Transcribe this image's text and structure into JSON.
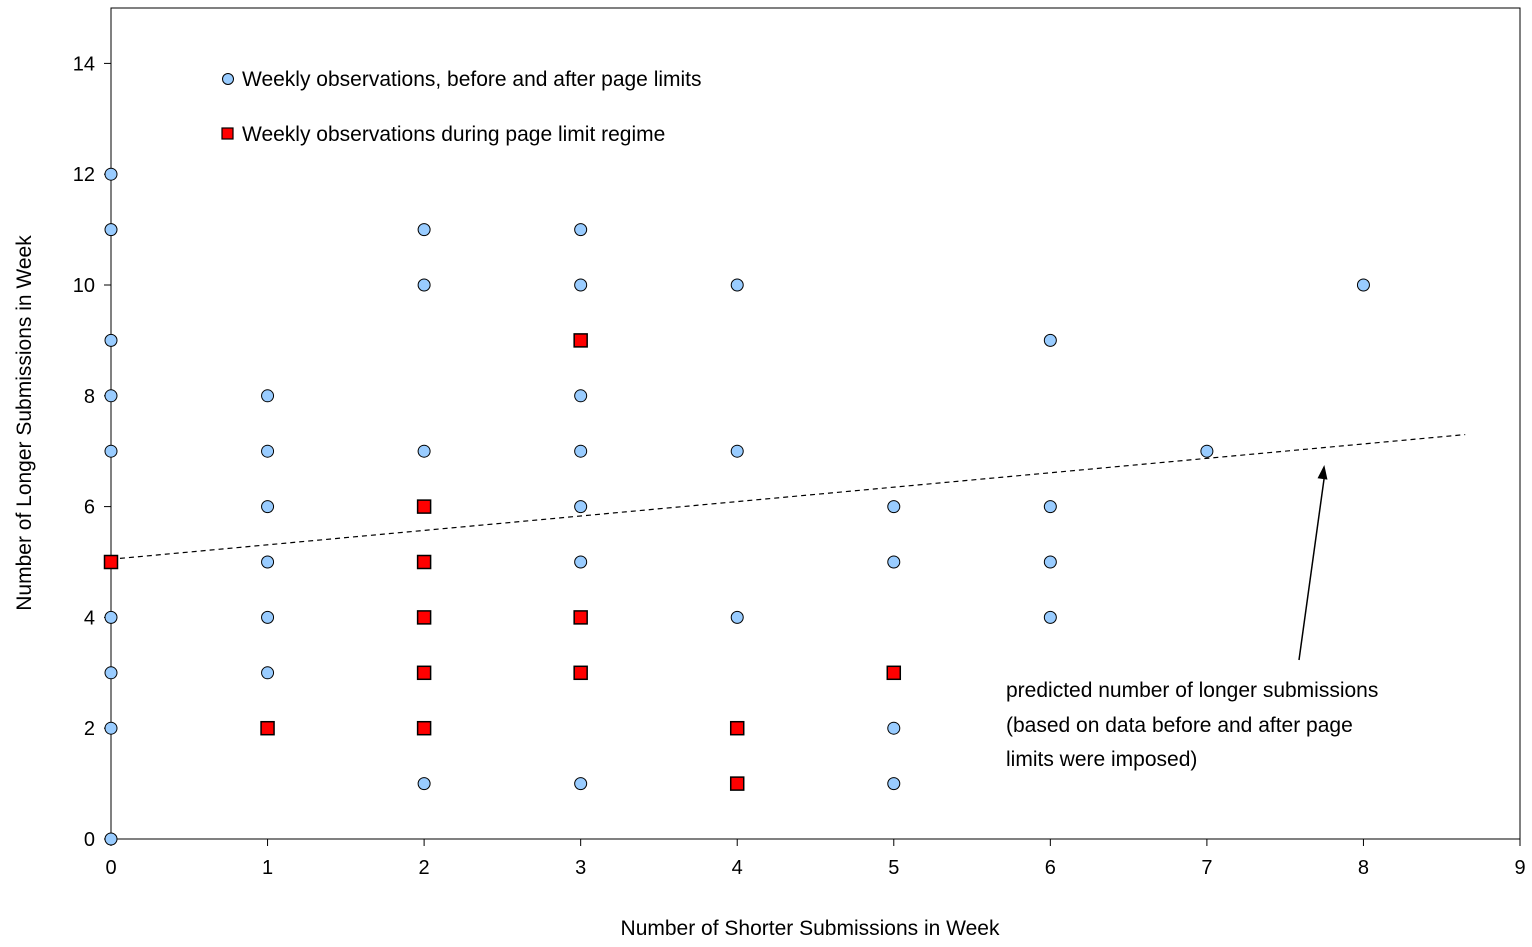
{
  "chart_data": {
    "type": "scatter",
    "title": "",
    "xlabel": "Number of Shorter Submissions in Week",
    "ylabel": "Number of Longer Submissions in Week",
    "xlim": [
      0,
      9
    ],
    "ylim": [
      0,
      15
    ],
    "xticks": [
      "0",
      "1",
      "2",
      "3",
      "4",
      "5",
      "6",
      "7",
      "8",
      "9"
    ],
    "yticks": [
      "0",
      "2",
      "4",
      "6",
      "8",
      "10",
      "12",
      "14"
    ],
    "grid": false,
    "legend_position": "top-left",
    "series": [
      {
        "name": "Weekly observations, before and after page limits",
        "marker": "circle",
        "color": "#99CCFF",
        "points": [
          [
            0,
            0
          ],
          [
            0,
            2
          ],
          [
            0,
            3
          ],
          [
            0,
            4
          ],
          [
            0,
            7
          ],
          [
            0,
            8
          ],
          [
            0,
            9
          ],
          [
            0,
            11
          ],
          [
            0,
            12
          ],
          [
            1,
            3
          ],
          [
            1,
            4
          ],
          [
            1,
            5
          ],
          [
            1,
            6
          ],
          [
            1,
            7
          ],
          [
            1,
            8
          ],
          [
            2,
            1
          ],
          [
            2,
            7
          ],
          [
            2,
            10
          ],
          [
            2,
            11
          ],
          [
            3,
            1
          ],
          [
            3,
            5
          ],
          [
            3,
            6
          ],
          [
            3,
            7
          ],
          [
            3,
            8
          ],
          [
            3,
            10
          ],
          [
            3,
            11
          ],
          [
            4,
            4
          ],
          [
            4,
            7
          ],
          [
            4,
            10
          ],
          [
            5,
            1
          ],
          [
            5,
            2
          ],
          [
            5,
            5
          ],
          [
            5,
            6
          ],
          [
            6,
            4
          ],
          [
            6,
            5
          ],
          [
            6,
            6
          ],
          [
            6,
            9
          ],
          [
            7,
            7
          ],
          [
            8,
            10
          ]
        ]
      },
      {
        "name": "Weekly observations during page limit regime",
        "marker": "square",
        "color": "#FF0000",
        "points": [
          [
            0,
            5
          ],
          [
            1,
            2
          ],
          [
            2,
            2
          ],
          [
            2,
            3
          ],
          [
            2,
            4
          ],
          [
            2,
            5
          ],
          [
            2,
            6
          ],
          [
            3,
            3
          ],
          [
            3,
            4
          ],
          [
            3,
            9
          ],
          [
            4,
            1
          ],
          [
            4,
            2
          ],
          [
            5,
            3
          ]
        ]
      }
    ],
    "trend_line": {
      "style": "dashed",
      "points": [
        [
          0,
          5.05
        ],
        [
          8.65,
          7.3
        ]
      ]
    },
    "annotation": {
      "lines": [
        "predicted number of longer submissions",
        "(based on data before and after page",
        "limits were imposed)"
      ],
      "arrow_to": [
        7.75,
        6.75
      ]
    }
  }
}
